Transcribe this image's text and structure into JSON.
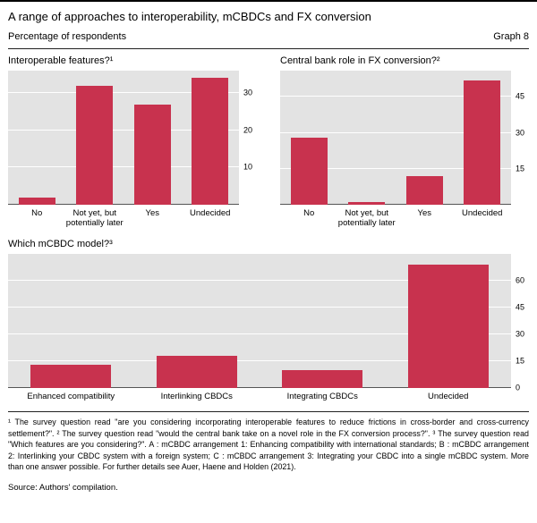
{
  "page": {
    "title": "A range of approaches to interoperability, mCBDCs and FX conversion",
    "subtitle": "Percentage of respondents",
    "graph_label": "Graph 8"
  },
  "colors": {
    "bar": "#c8324e",
    "plot_bg": "#e3e3e3",
    "gridline": "#ffffff",
    "axisline": "#555555"
  },
  "chart_data": [
    {
      "type": "bar",
      "title": "Interoperable features?¹",
      "categories": [
        "No",
        "Not yet, but\npotentially later",
        "Yes",
        "Undecided"
      ],
      "values": [
        2,
        32,
        27,
        34
      ],
      "ylim": [
        0,
        36
      ],
      "ticks": [
        10,
        20,
        30
      ],
      "ylabel": "",
      "xlabel": "",
      "grid": "horizontal-white",
      "tick_label_side": "right"
    },
    {
      "type": "bar",
      "title": "Central bank role in FX conversion?²",
      "categories": [
        "No",
        "Not yet, but\npotentially later",
        "Yes",
        "Undecided"
      ],
      "values": [
        28,
        1,
        12,
        52
      ],
      "ylim": [
        0,
        56
      ],
      "ticks": [
        15,
        30,
        45
      ],
      "ylabel": "",
      "xlabel": "",
      "grid": "horizontal-white",
      "tick_label_side": "right"
    },
    {
      "type": "bar",
      "title": "Which mCBDC model?³",
      "categories": [
        "Enhanced compatibility",
        "Interlinking CBDCs",
        "Integrating CBDCs",
        "Undecided"
      ],
      "values": [
        13,
        18,
        10,
        69
      ],
      "ylim": [
        0,
        75
      ],
      "ticks": [
        0,
        15,
        30,
        45,
        60
      ],
      "ylabel": "",
      "xlabel": "",
      "grid": "horizontal-white",
      "tick_label_side": "right"
    }
  ],
  "footnotes": {
    "text": "¹ The survey question read \"are you considering incorporating interoperable features to reduce frictions in cross-border and cross-currency settlement?\". ² The survey question read \"would the central bank take on a novel role in the FX conversion process?\". ³ The survey question read \"Which features are you considering?\". A : mCBDC arrangement 1: Enhancing compatibility with international standards; B : mCBDC arrangement 2: Interlinking your CBDC system with a foreign system; C : mCBDC arrangement 3: Integrating your CBDC into a single mCBDC system. More than one answer possible. For further details see Auer, Haene and Holden (2021)."
  },
  "source": "Source: Authors' compilation."
}
